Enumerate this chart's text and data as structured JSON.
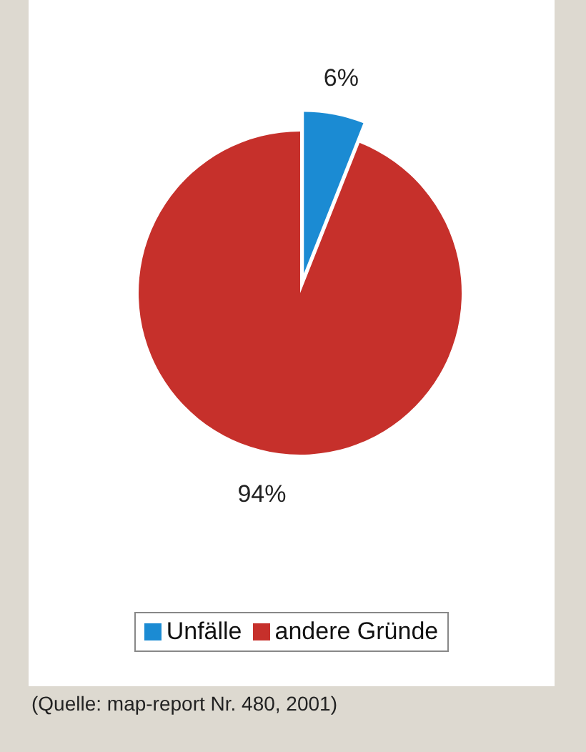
{
  "chart_data": {
    "type": "pie",
    "categories": [
      "Unfälle",
      "andere Gründe"
    ],
    "values": [
      6,
      94
    ],
    "colors": [
      "#1b8bd3",
      "#c6302b"
    ],
    "value_labels": [
      "6%",
      "94%"
    ],
    "legend": "bottom",
    "annotations": [
      "(Quelle: map-report Nr. 480, 2001)"
    ]
  }
}
